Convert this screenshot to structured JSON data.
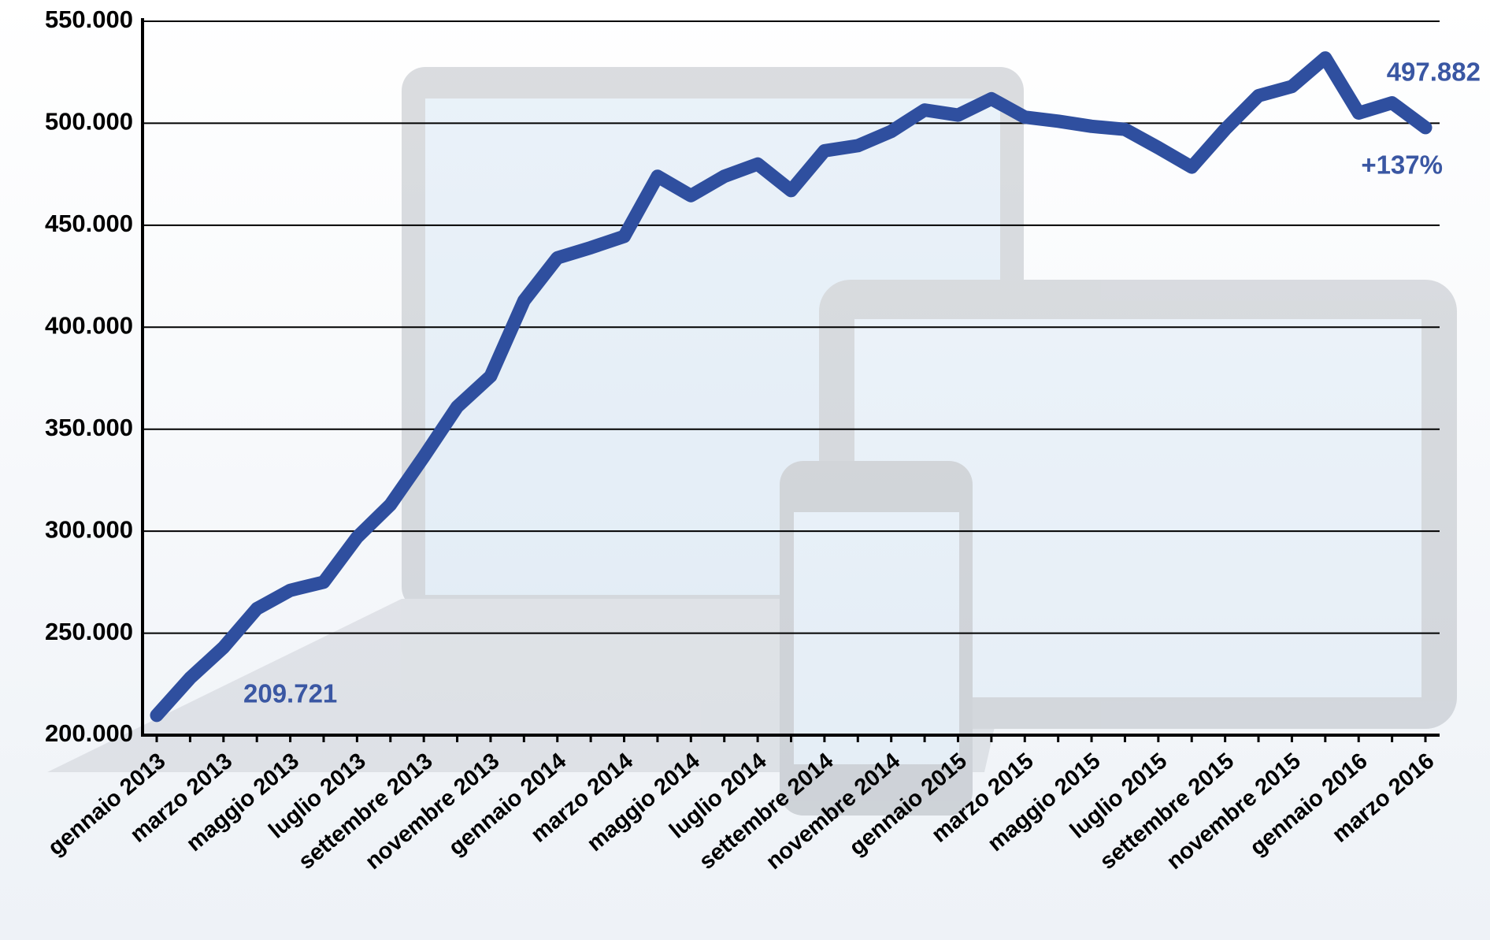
{
  "chart_data": {
    "type": "line",
    "categories": [
      "gennaio 2013",
      null,
      "marzo 2013",
      null,
      "maggio 2013",
      null,
      "luglio 2013",
      null,
      "settembre 2013",
      null,
      "novembre 2013",
      null,
      "gennaio 2014",
      null,
      "marzo 2014",
      null,
      "maggio 2014",
      null,
      "luglio 2014",
      null,
      "settembre 2014",
      null,
      "novembre 2014",
      null,
      "gennaio 2015",
      null,
      "marzo 2015",
      null,
      "maggio 2015",
      null,
      "luglio 2015",
      null,
      "settembre 2015",
      null,
      "novembre 2015",
      null,
      "gennaio 2016",
      null,
      "marzo 2016"
    ],
    "values": [
      209721,
      228000,
      243000,
      262000,
      271000,
      275000,
      297000,
      313000,
      336500,
      361000,
      376000,
      413000,
      434000,
      439000,
      444500,
      474000,
      464500,
      474000,
      480000,
      467000,
      486500,
      489000,
      496000,
      506500,
      504000,
      512000,
      503000,
      501000,
      498500,
      497000,
      488000,
      478500,
      497000,
      513500,
      518000,
      532000,
      505000,
      510000,
      497882
    ],
    "value_labels": [
      "209.721",
      null,
      null,
      null,
      null,
      null,
      null,
      null,
      null,
      null,
      null,
      null,
      null,
      null,
      null,
      null,
      null,
      null,
      null,
      null,
      null,
      null,
      null,
      null,
      null,
      null,
      null,
      null,
      null,
      null,
      null,
      null,
      null,
      null,
      null,
      null,
      null,
      null,
      "497.882"
    ],
    "color": "#2f4f9f",
    "annotations": [
      "+137%"
    ],
    "ylim": [
      200000,
      550000
    ],
    "yticks": [
      {
        "value": 200000,
        "label": "200.000"
      },
      {
        "value": 250000,
        "label": "250.000"
      },
      {
        "value": 300000,
        "label": "300.000"
      },
      {
        "value": 350000,
        "label": "350.000"
      },
      {
        "value": 400000,
        "label": "400.000"
      },
      {
        "value": 450000,
        "label": "450.000"
      },
      {
        "value": 500000,
        "label": "500.000"
      },
      {
        "value": 550000,
        "label": "550.000"
      }
    ],
    "grid": true
  }
}
